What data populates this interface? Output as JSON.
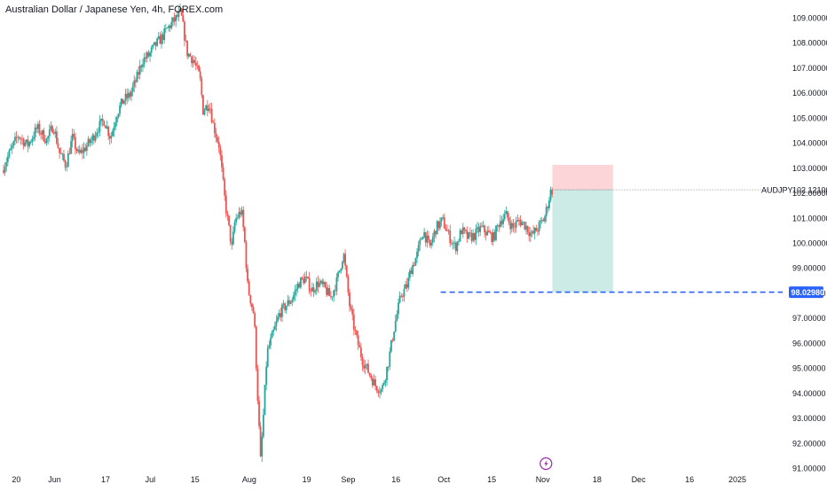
{
  "header": {
    "title": "Australian Dollar / Japanese Yen, 4h, FOREX.com"
  },
  "colors": {
    "up": "#26a69a",
    "down": "#ef5350",
    "target_zone": "#cdebe6",
    "stop_zone": "#fbd5d8",
    "entry_line": "#2962ff",
    "axis_text": "#131722",
    "price_tag_bg": "#2962ff"
  },
  "icons": {
    "bottom_marker": "lightning-bolt-icon"
  },
  "chart_data": {
    "type": "candlestick",
    "symbol_label": "AUDJPY",
    "last_price_label": "102.12100",
    "entry_price": 98.0298,
    "entry_price_label": "98.02980",
    "position": {
      "type": "short",
      "entry": 102.121,
      "stop": 103.12,
      "target": 98.0298
    },
    "ylim": [
      90.8,
      109.6
    ],
    "y_ticks": [
      "109.00000",
      "108.00000",
      "107.00000",
      "106.00000",
      "105.00000",
      "104.00000",
      "103.00000",
      "102.00000",
      "101.00000",
      "100.00000",
      "99.00000",
      "98.00000",
      "97.00000",
      "96.00000",
      "95.00000",
      "94.00000",
      "93.00000",
      "92.00000",
      "91.00000"
    ],
    "y_tick_values": [
      109,
      108,
      107,
      106,
      105,
      104,
      103,
      102,
      101,
      100,
      99,
      98,
      97,
      96,
      95,
      94,
      93,
      92,
      91
    ],
    "x_ticks": [
      "20",
      "Jun",
      "17",
      "Jul",
      "15",
      "Aug",
      "19",
      "Sep",
      "16",
      "Oct",
      "15",
      "Nov",
      "18",
      "Dec",
      "16",
      "2025"
    ],
    "x_tick_days": [
      -11,
      1,
      17,
      31,
      45,
      62,
      80,
      93,
      108,
      123,
      138,
      154,
      171,
      184,
      200,
      215
    ],
    "x_range_days": [
      -15,
      225
    ],
    "price_path": [
      [
        -15,
        102.9
      ],
      [
        -13,
        103.5
      ],
      [
        -10,
        104.3
      ],
      [
        -7,
        103.9
      ],
      [
        -4,
        104.6
      ],
      [
        -1,
        104.1
      ],
      [
        1,
        104.7
      ],
      [
        3,
        103.6
      ],
      [
        5,
        103.1
      ],
      [
        7,
        104.2
      ],
      [
        9,
        103.5
      ],
      [
        11,
        103.8
      ],
      [
        13,
        104.1
      ],
      [
        15,
        104.6
      ],
      [
        17,
        104.9
      ],
      [
        19,
        104.2
      ],
      [
        21,
        105.2
      ],
      [
        23,
        105.7
      ],
      [
        25,
        105.9
      ],
      [
        27,
        106.5
      ],
      [
        29,
        107.3
      ],
      [
        31,
        107.5
      ],
      [
        33,
        107.9
      ],
      [
        35,
        108.2
      ],
      [
        37,
        108.6
      ],
      [
        39,
        108.9
      ],
      [
        41,
        109.2
      ],
      [
        42,
        108.4
      ],
      [
        43,
        107.6
      ],
      [
        45,
        107.3
      ],
      [
        47,
        106.6
      ],
      [
        48,
        105.3
      ],
      [
        50,
        105.6
      ],
      [
        51,
        104.8
      ],
      [
        53,
        103.9
      ],
      [
        55,
        101.5
      ],
      [
        57,
        99.8
      ],
      [
        58,
        100.9
      ],
      [
        60,
        101.3
      ],
      [
        61,
        100.1
      ],
      [
        62,
        98.2
      ],
      [
        64,
        97.1
      ],
      [
        65,
        94.1
      ],
      [
        66,
        91.3
      ],
      [
        67,
        93.3
      ],
      [
        68,
        95.6
      ],
      [
        70,
        96.4
      ],
      [
        72,
        97.2
      ],
      [
        74,
        97.5
      ],
      [
        76,
        97.8
      ],
      [
        78,
        98.4
      ],
      [
        80,
        98.6
      ],
      [
        82,
        98.1
      ],
      [
        84,
        98.4
      ],
      [
        86,
        98.2
      ],
      [
        88,
        97.8
      ],
      [
        90,
        98.5
      ],
      [
        92,
        99.6
      ],
      [
        94,
        97.4
      ],
      [
        96,
        96.2
      ],
      [
        98,
        95.3
      ],
      [
        100,
        94.8
      ],
      [
        102,
        94.3
      ],
      [
        104,
        94.1
      ],
      [
        106,
        95.2
      ],
      [
        108,
        96.7
      ],
      [
        110,
        97.9
      ],
      [
        112,
        98.3
      ],
      [
        113,
        98.9
      ],
      [
        115,
        99.5
      ],
      [
        117,
        100.5
      ],
      [
        119,
        99.8
      ],
      [
        121,
        100.6
      ],
      [
        123,
        100.9
      ],
      [
        125,
        100.3
      ],
      [
        127,
        99.8
      ],
      [
        129,
        100.5
      ],
      [
        131,
        100.2
      ],
      [
        133,
        100.3
      ],
      [
        135,
        100.6
      ],
      [
        137,
        100.4
      ],
      [
        139,
        100.2
      ],
      [
        141,
        100.9
      ],
      [
        143,
        101.1
      ],
      [
        145,
        100.6
      ],
      [
        147,
        100.9
      ],
      [
        149,
        100.7
      ],
      [
        151,
        100.3
      ],
      [
        153,
        100.6
      ],
      [
        155,
        101.0
      ],
      [
        157,
        102.1
      ]
    ],
    "position_box_days": [
      157,
      176
    ]
  }
}
